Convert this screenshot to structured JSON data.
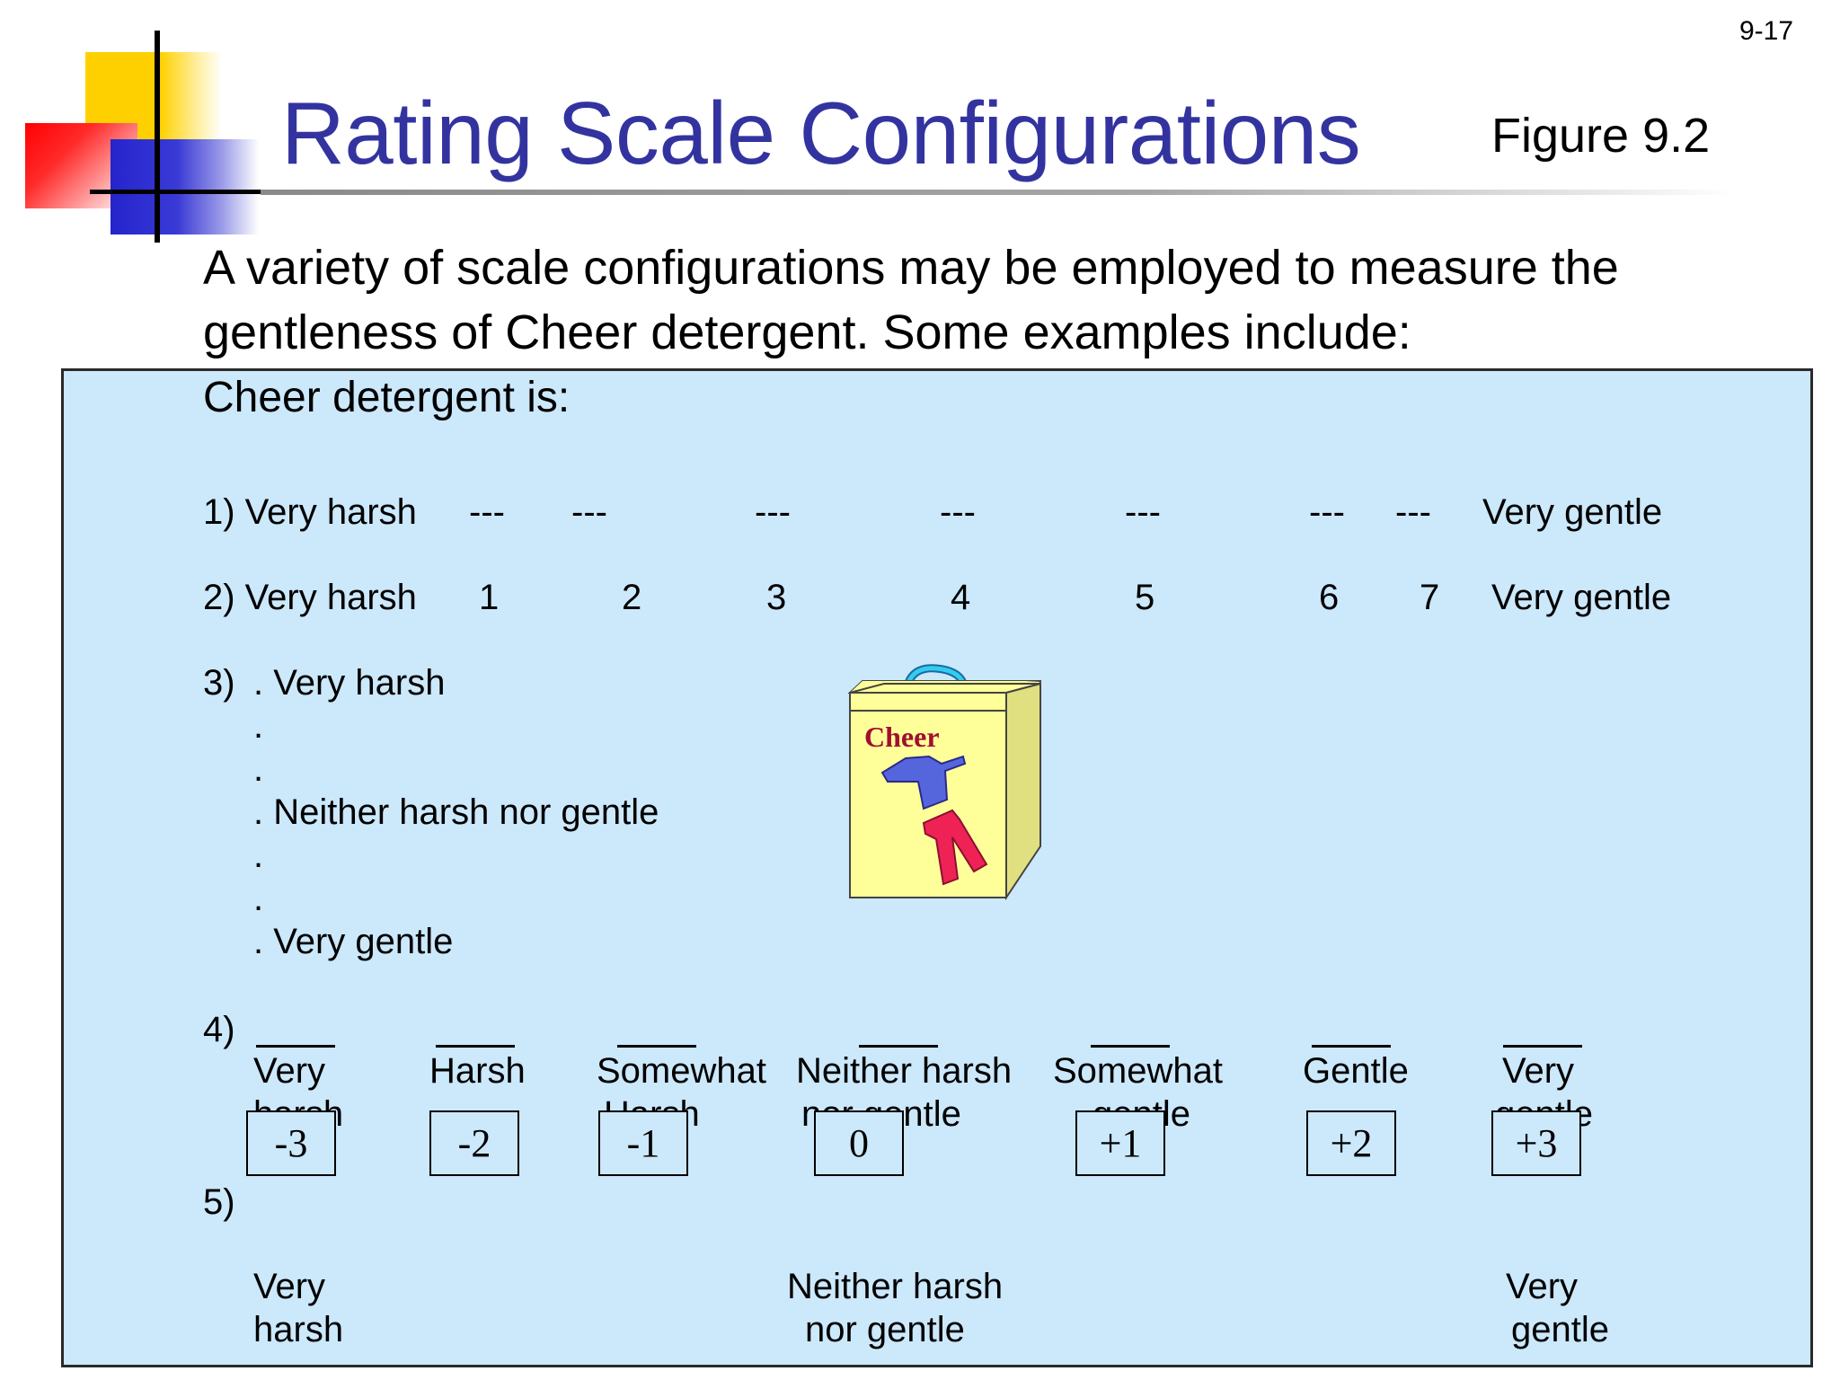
{
  "slide_number": "9-17",
  "title": "Rating Scale Configurations",
  "figure_label": "Figure 9.2",
  "intro_text": "A variety of scale configurations may be employed to measure the gentleness of Cheer detergent. Some examples include:",
  "lead_in": "Cheer detergent is:",
  "scale1": {
    "label": "1) Very harsh",
    "blanks": [
      "---",
      "---",
      "---",
      "---",
      "---",
      "---",
      "---"
    ],
    "right_anchor": "Very gentle"
  },
  "scale2": {
    "label": "2) Very harsh",
    "numbers": [
      "1",
      "2",
      "3",
      "4",
      "5",
      "6",
      "7"
    ],
    "right_anchor": "Very gentle"
  },
  "scale3": {
    "number": "3)",
    "lines": [
      ". Very harsh",
      ".",
      ".",
      ".  Neither harsh nor gentle",
      ".",
      ".",
      ".  Very gentle"
    ]
  },
  "product_box": {
    "brand": "Cheer"
  },
  "scale4": {
    "number": "4)",
    "options": [
      {
        "line1": "Very",
        "line2": "harsh"
      },
      {
        "line1": "Harsh",
        "line2": ""
      },
      {
        "line1": "Somewhat",
        "line2": "Harsh"
      },
      {
        "line1": "Neither harsh",
        "line2": "nor gentle"
      },
      {
        "line1": "Somewhat",
        "line2": "gentle"
      },
      {
        "line1": "Gentle",
        "line2": ""
      },
      {
        "line1": "Very",
        "line2": "gentle"
      }
    ]
  },
  "scale5": {
    "number": "5)",
    "values": [
      "-3",
      "-2",
      "-1",
      "0",
      "+1",
      "+2",
      "+3"
    ],
    "anchors": [
      {
        "line1": "Very",
        "line2": "harsh"
      },
      {
        "line1": "Neither harsh",
        "line2": "nor gentle"
      },
      {
        "line1": "Very",
        "line2": "gentle"
      }
    ]
  },
  "colors": {
    "title": "#3333a0",
    "panel_bg": "#cce8fb",
    "box_yellow": "#ffff99",
    "brand_red": "#a01030"
  }
}
